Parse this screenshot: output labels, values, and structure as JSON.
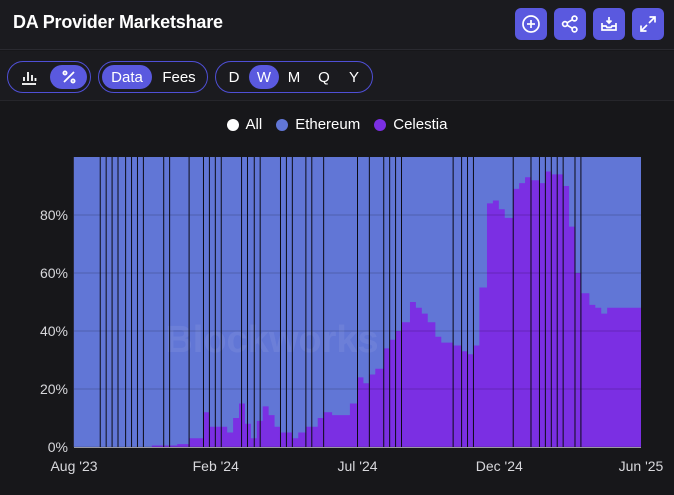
{
  "header": {
    "title": "DA Provider Marketshare",
    "buttons": [
      {
        "name": "add-icon"
      },
      {
        "name": "share-icon"
      },
      {
        "name": "download-icon"
      },
      {
        "name": "expand-icon"
      }
    ]
  },
  "toolbar": {
    "view_toggle": [
      {
        "name": "bar-chart-icon",
        "active": false
      },
      {
        "name": "percent-icon",
        "active": true
      }
    ],
    "metric_tabs": [
      {
        "label": "Data",
        "active": true
      },
      {
        "label": "Fees",
        "active": false
      }
    ],
    "interval_tabs": [
      {
        "label": "D",
        "active": false
      },
      {
        "label": "W",
        "active": true
      },
      {
        "label": "M",
        "active": false
      },
      {
        "label": "Q",
        "active": false
      },
      {
        "label": "Y",
        "active": false
      }
    ]
  },
  "legend": [
    {
      "label": "All",
      "color": "#ffffff"
    },
    {
      "label": "Ethereum",
      "color": "#6176d6"
    },
    {
      "label": "Celestia",
      "color": "#7b2fe3"
    }
  ],
  "watermark": "Blockworks",
  "chart_data": {
    "type": "area",
    "stacked": true,
    "normalized": true,
    "x_tick_labels": [
      "Aug '23",
      "Feb '24",
      "Jul '24",
      "Dec '24",
      "Jun '25"
    ],
    "y_tick_labels": [
      "0%",
      "20%",
      "40%",
      "60%",
      "80%"
    ],
    "ylim": [
      0,
      100
    ],
    "x_start": "2023-08-01",
    "x_end": "2025-06-01",
    "series": [
      {
        "name": "Celestia",
        "color": "#7b2fe3",
        "points": [
          [
            "2023-08-01",
            0
          ],
          [
            "2023-10-15",
            0
          ],
          [
            "2023-11-01",
            0.5
          ],
          [
            "2023-12-01",
            1
          ],
          [
            "2023-12-15",
            3
          ],
          [
            "2024-01-01",
            12
          ],
          [
            "2024-01-08",
            7
          ],
          [
            "2024-01-22",
            7
          ],
          [
            "2024-01-29",
            5
          ],
          [
            "2024-02-05",
            10
          ],
          [
            "2024-02-12",
            15
          ],
          [
            "2024-02-19",
            8
          ],
          [
            "2024-02-26",
            3
          ],
          [
            "2024-03-04",
            9
          ],
          [
            "2024-03-11",
            14
          ],
          [
            "2024-03-18",
            11
          ],
          [
            "2024-03-25",
            7
          ],
          [
            "2024-04-01",
            5
          ],
          [
            "2024-04-15",
            3
          ],
          [
            "2024-04-22",
            5
          ],
          [
            "2024-05-01",
            7
          ],
          [
            "2024-05-15",
            10
          ],
          [
            "2024-05-22",
            12
          ],
          [
            "2024-06-01",
            11
          ],
          [
            "2024-06-15",
            11
          ],
          [
            "2024-06-22",
            15
          ],
          [
            "2024-07-01",
            24
          ],
          [
            "2024-07-08",
            22
          ],
          [
            "2024-07-15",
            25
          ],
          [
            "2024-07-22",
            27
          ],
          [
            "2024-08-01",
            34
          ],
          [
            "2024-08-08",
            37
          ],
          [
            "2024-08-15",
            40
          ],
          [
            "2024-08-22",
            43
          ],
          [
            "2024-09-01",
            50
          ],
          [
            "2024-09-08",
            48
          ],
          [
            "2024-09-15",
            46
          ],
          [
            "2024-09-22",
            43
          ],
          [
            "2024-10-01",
            38
          ],
          [
            "2024-10-08",
            36
          ],
          [
            "2024-10-15",
            36
          ],
          [
            "2024-10-22",
            35
          ],
          [
            "2024-11-01",
            33
          ],
          [
            "2024-11-08",
            32
          ],
          [
            "2024-11-15",
            35
          ],
          [
            "2024-11-22",
            55
          ],
          [
            "2024-12-01",
            84
          ],
          [
            "2024-12-08",
            85
          ],
          [
            "2024-12-15",
            82
          ],
          [
            "2024-12-22",
            79
          ],
          [
            "2025-01-01",
            89
          ],
          [
            "2025-01-08",
            91
          ],
          [
            "2025-01-15",
            93
          ],
          [
            "2025-01-22",
            92
          ],
          [
            "2025-02-01",
            91
          ],
          [
            "2025-02-08",
            95
          ],
          [
            "2025-02-15",
            94
          ],
          [
            "2025-03-01",
            90
          ],
          [
            "2025-03-08",
            76
          ],
          [
            "2025-03-15",
            60
          ],
          [
            "2025-03-22",
            53
          ],
          [
            "2025-04-01",
            49
          ],
          [
            "2025-04-08",
            48
          ],
          [
            "2025-04-15",
            46
          ],
          [
            "2025-04-22",
            48
          ],
          [
            "2025-06-01",
            48
          ]
        ]
      },
      {
        "name": "Ethereum",
        "color": "#6176d6",
        "points": "remainder to 100%"
      }
    ],
    "vertical_markers": [
      "2023-09-01",
      "2023-09-08",
      "2023-09-15",
      "2023-09-22",
      "2023-10-01",
      "2023-10-08",
      "2023-10-15",
      "2023-10-22",
      "2023-11-15",
      "2023-11-22",
      "2023-12-15",
      "2024-01-01",
      "2024-01-08",
      "2024-01-15",
      "2024-01-22",
      "2024-02-15",
      "2024-02-22",
      "2024-03-01",
      "2024-03-08",
      "2024-04-01",
      "2024-04-08",
      "2024-04-15",
      "2024-05-01",
      "2024-05-08",
      "2024-05-22",
      "2024-07-01",
      "2024-07-15",
      "2024-08-01",
      "2024-08-08",
      "2024-08-15",
      "2024-08-22",
      "2024-10-22",
      "2024-11-01",
      "2024-11-08",
      "2024-11-15",
      "2025-01-01",
      "2025-01-22",
      "2025-02-01",
      "2025-02-08",
      "2025-02-15",
      "2025-02-22",
      "2025-03-01",
      "2025-03-15",
      "2025-03-22"
    ]
  }
}
